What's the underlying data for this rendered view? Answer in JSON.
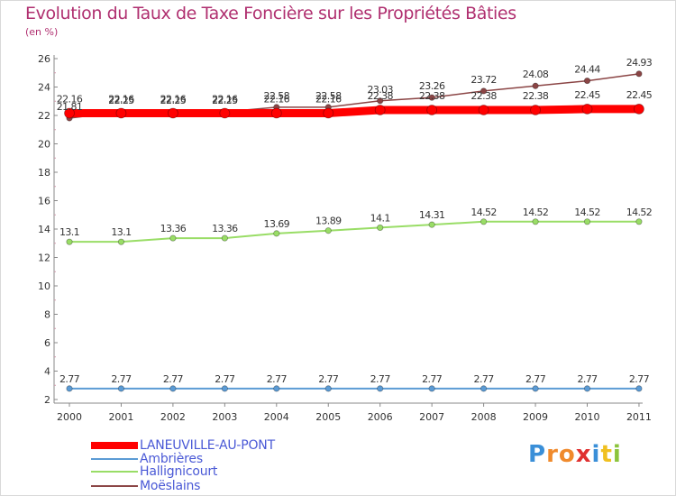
{
  "title": "Evolution du Taux de Taxe Foncière sur les Propriétés Bâties",
  "unit": "(en %)",
  "brand": {
    "letters": [
      "P",
      "r",
      "o",
      "x",
      "i",
      "t",
      "i"
    ],
    "colors": [
      "#3a8fd8",
      "#f08a2c",
      "#f08a2c",
      "#e03030",
      "#3a8fd8",
      "#f0c020",
      "#8cc43c"
    ]
  },
  "chart_data": {
    "type": "line",
    "x": [
      "2000",
      "2001",
      "2002",
      "2003",
      "2004",
      "2005",
      "2006",
      "2007",
      "2008",
      "2009",
      "2010",
      "2011"
    ],
    "ylim": [
      2,
      26
    ],
    "yticks": [
      "2",
      "4",
      "6",
      "8",
      "10",
      "12",
      "14",
      "16",
      "18",
      "20",
      "22",
      "24",
      "26"
    ],
    "grid": false,
    "series": [
      {
        "name": "Ambrières",
        "color": "#5b9bd5",
        "values": [
          2.77,
          2.77,
          2.77,
          2.77,
          2.77,
          2.77,
          2.77,
          2.77,
          2.77,
          2.77,
          2.77,
          2.77
        ],
        "labels": [
          "2.77",
          "2.77",
          "2.77",
          "2.77",
          "2.77",
          "2.77",
          "2.77",
          "2.77",
          "2.77",
          "2.77",
          "2.77",
          "2.77"
        ]
      },
      {
        "name": "Hallignicourt",
        "color": "#99dd66",
        "values": [
          13.1,
          13.1,
          13.36,
          13.36,
          13.69,
          13.89,
          14.1,
          14.31,
          14.52,
          14.52,
          14.52,
          14.52
        ],
        "labels": [
          "13.1",
          "13.1",
          "13.36",
          "13.36",
          "13.69",
          "13.89",
          "14.1",
          "14.31",
          "14.52",
          "14.52",
          "14.52",
          "14.52"
        ]
      },
      {
        "name": "Moëslains",
        "color": "#8b4545",
        "values": [
          21.81,
          22.25,
          22.25,
          22.25,
          22.58,
          22.58,
          23.03,
          23.26,
          23.72,
          24.08,
          24.44,
          24.93
        ],
        "labels": [
          "21.81",
          "22.25",
          "22.25",
          "22.25",
          "22.58",
          "22.58",
          "23.03",
          "23.26",
          "23.72",
          "24.08",
          "24.44",
          "24.93"
        ]
      },
      {
        "name": "LANEUVILLE-AU-PONT",
        "color": "#ff0000",
        "values": [
          22.16,
          22.16,
          22.16,
          22.16,
          22.16,
          22.16,
          22.38,
          22.38,
          22.38,
          22.38,
          22.45,
          22.45
        ],
        "labels": [
          "22.16",
          "22.16",
          "22.16",
          "22.16",
          "22.16",
          "22.16",
          "22.38",
          "22.38",
          "22.38",
          "22.38",
          "22.45",
          "22.45"
        ]
      }
    ],
    "legend": [
      "LANEUVILLE-AU-PONT",
      "Ambrières",
      "Hallignicourt",
      "Moëslains"
    ],
    "legend_position": "bottom-left"
  }
}
